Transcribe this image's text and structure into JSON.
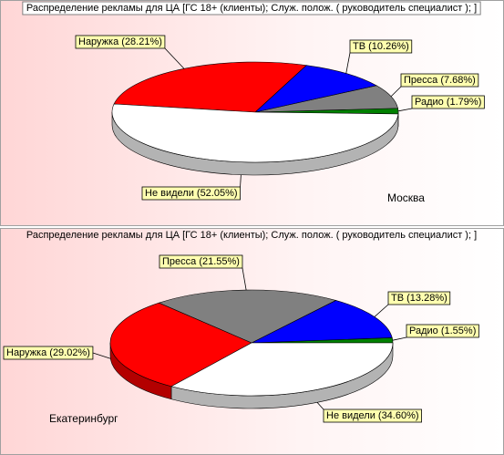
{
  "chart_data": [
    {
      "type": "pie",
      "title": "Распределение рекламы для ЦА [ГС 18+ (клиенты); Служ. полож. ( руководитель специалист ); ]",
      "categories": [
        "Радио",
        "Пресса",
        "ТВ",
        "Наружка",
        "Не видели"
      ],
      "values": [
        1.79,
        7.68,
        10.26,
        28.21,
        52.05
      ],
      "value_labels": [
        "(1.79%)",
        "(7.68%)",
        "(10.26%)",
        "(28.21%)",
        "(52.05%)"
      ],
      "colors": [
        "#008000",
        "#808080",
        "#0000ff",
        "#ff0000",
        "#ffffff"
      ],
      "annotation": "Москва"
    },
    {
      "type": "pie",
      "title": "Распределение рекламы для ЦА [ГС 18+ (клиенты); Служ. полож. ( руководитель специалист ); ]",
      "categories": [
        "Радио",
        "ТВ",
        "Пресса",
        "Наружка",
        "Не видели"
      ],
      "values": [
        1.55,
        13.28,
        21.55,
        29.02,
        34.6
      ],
      "value_labels": [
        "(1.55%)",
        "(13.28%)",
        "(21.55%)",
        "(29.02%)",
        "(34.60%)"
      ],
      "colors": [
        "#008000",
        "#0000ff",
        "#808080",
        "#ff0000",
        "#ffffff"
      ],
      "annotation": "Екатеринбург"
    }
  ]
}
